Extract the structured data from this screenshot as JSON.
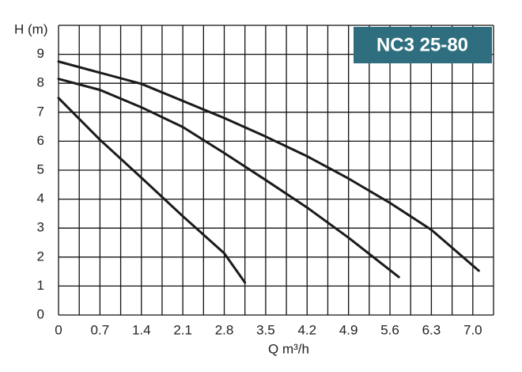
{
  "chart_data": {
    "type": "line",
    "title": "NC3 25-80",
    "x_label": "Q m³/h",
    "y_label": "H (m)",
    "xlim": [
      0,
      7.35
    ],
    "ylim": [
      0,
      10
    ],
    "xticks": [
      0,
      0.7,
      1.4,
      2.1,
      2.8,
      3.5,
      4.2,
      4.9,
      5.6,
      6.3,
      {
        "value": 7,
        "label": "7.0"
      }
    ],
    "yticks": [
      0,
      1,
      2,
      3,
      4,
      5,
      6,
      7,
      8,
      9
    ],
    "xgrid": [
      0,
      0.35,
      0.7,
      1.05,
      1.4,
      1.75,
      2.1,
      2.45,
      2.8,
      3.15,
      3.5,
      3.85,
      4.2,
      4.55,
      4.9,
      5.25,
      5.6,
      5.95,
      6.3,
      6.65,
      7,
      7.35
    ],
    "ygrid": [
      0,
      1,
      2,
      3,
      4,
      5,
      6,
      7,
      8,
      9,
      10
    ],
    "title_color": "#2e6e7e",
    "series": [
      {
        "color": "#1a1a1a",
        "x": [
          0,
          1.4,
          2.8,
          3.5,
          4.2,
          4.9,
          5.6,
          6.3,
          7.1
        ],
        "values": [
          8.75,
          7.98,
          6.8,
          6.16,
          5.48,
          4.71,
          3.87,
          2.94,
          1.53
        ]
      },
      {
        "color": "#1a1a1a",
        "x": [
          0,
          0.7,
          1.4,
          2.1,
          2.8,
          3.5,
          4.2,
          4.9,
          5.75
        ],
        "values": [
          8.15,
          7.77,
          7.17,
          6.49,
          5.59,
          4.66,
          3.71,
          2.67,
          1.31
        ]
      },
      {
        "color": "#1a1a1a",
        "x": [
          0,
          0.7,
          1.4,
          2.1,
          2.8,
          3.15
        ],
        "values": [
          7.49,
          6.05,
          4.74,
          3.41,
          2.13,
          1.12
        ]
      }
    ]
  }
}
